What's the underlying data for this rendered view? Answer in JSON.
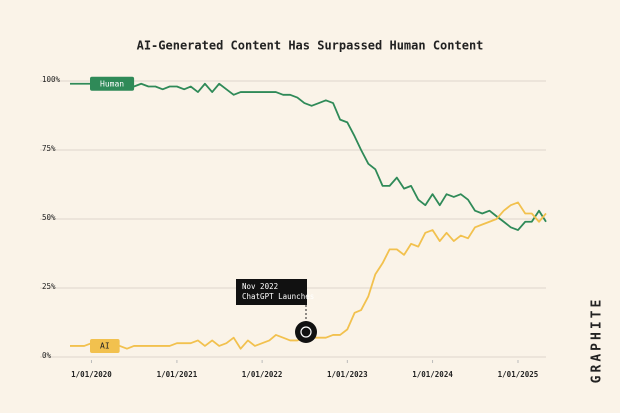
{
  "chart_data": {
    "type": "line",
    "title": "AI-Generated Content Has Surpassed Human Content",
    "x": [
      "2019-10-01",
      "2019-11-01",
      "2019-12-01",
      "2020-01-01",
      "2020-02-01",
      "2020-03-01",
      "2020-04-01",
      "2020-05-01",
      "2020-06-01",
      "2020-07-01",
      "2020-08-01",
      "2020-09-01",
      "2020-10-01",
      "2020-11-01",
      "2020-12-01",
      "2021-01-01",
      "2021-02-01",
      "2021-03-01",
      "2021-04-01",
      "2021-05-01",
      "2021-06-01",
      "2021-07-01",
      "2021-08-01",
      "2021-09-01",
      "2021-10-01",
      "2021-11-01",
      "2021-12-01",
      "2022-01-01",
      "2022-02-01",
      "2022-03-01",
      "2022-04-01",
      "2022-05-01",
      "2022-06-01",
      "2022-07-01",
      "2022-08-01",
      "2022-09-01",
      "2022-10-01",
      "2022-11-01",
      "2022-12-01",
      "2023-01-01",
      "2023-02-01",
      "2023-03-01",
      "2023-04-01",
      "2023-05-01",
      "2023-06-01",
      "2023-07-01",
      "2023-08-01",
      "2023-09-01",
      "2023-10-01",
      "2023-11-01",
      "2023-12-01",
      "2024-01-01",
      "2024-02-01",
      "2024-03-01",
      "2024-04-01",
      "2024-05-01",
      "2024-06-01",
      "2024-07-01",
      "2024-08-01",
      "2024-09-01",
      "2024-10-01",
      "2024-11-01",
      "2024-12-01",
      "2025-01-01",
      "2025-02-01",
      "2025-03-01",
      "2025-04-01",
      "2025-05-01"
    ],
    "series": [
      {
        "name": "Human",
        "color": "#2f8a58",
        "values": [
          99,
          99,
          99,
          99,
          99,
          99,
          99,
          99,
          99,
          98,
          99,
          98,
          98,
          97,
          98,
          98,
          97,
          98,
          96,
          99,
          96,
          99,
          97,
          95,
          96,
          96,
          96,
          96,
          96,
          96,
          95,
          95,
          94,
          92,
          91,
          92,
          93,
          92,
          86,
          85,
          80,
          75,
          70,
          68,
          62,
          62,
          65,
          61,
          62,
          57,
          55,
          59,
          55,
          59,
          58,
          59,
          57,
          53,
          52,
          53,
          51,
          49,
          47,
          46,
          49,
          49,
          53,
          49
        ]
      },
      {
        "name": "AI",
        "color": "#f2c14e",
        "values": [
          4,
          4,
          4,
          5,
          4,
          4,
          4,
          4,
          3,
          4,
          4,
          4,
          4,
          4,
          4,
          5,
          5,
          5,
          6,
          4,
          6,
          4,
          5,
          7,
          3,
          6,
          4,
          5,
          6,
          8,
          7,
          6,
          6,
          7,
          7,
          7,
          7,
          8,
          8,
          10,
          16,
          17,
          22,
          30,
          34,
          39,
          39,
          37,
          41,
          40,
          45,
          46,
          42,
          45,
          42,
          44,
          43,
          47,
          48,
          49,
          50,
          53,
          55,
          56,
          52,
          52,
          49,
          52
        ]
      }
    ],
    "xlim": [
      "2019-10-01",
      "2025-05-01"
    ],
    "xticks": [
      {
        "value": "2020-01-01",
        "label": "1/01/2020"
      },
      {
        "value": "2021-01-01",
        "label": "1/01/2021"
      },
      {
        "value": "2022-01-01",
        "label": "1/01/2022"
      },
      {
        "value": "2023-01-01",
        "label": "1/01/2023"
      },
      {
        "value": "2024-01-01",
        "label": "1/01/2024"
      },
      {
        "value": "2025-01-01",
        "label": "1/01/2025"
      }
    ],
    "ylim": [
      0,
      100
    ],
    "yticks": [
      {
        "value": 0,
        "label": "0%"
      },
      {
        "value": 25,
        "label": "25%"
      },
      {
        "value": 50,
        "label": "50%"
      },
      {
        "value": 75,
        "label": "75%"
      },
      {
        "value": 100,
        "label": "100%"
      }
    ],
    "grid": true,
    "annotation": [
      "Nov 2022",
      "ChatGPT Launches"
    ],
    "brand": "GRAPHITE"
  }
}
